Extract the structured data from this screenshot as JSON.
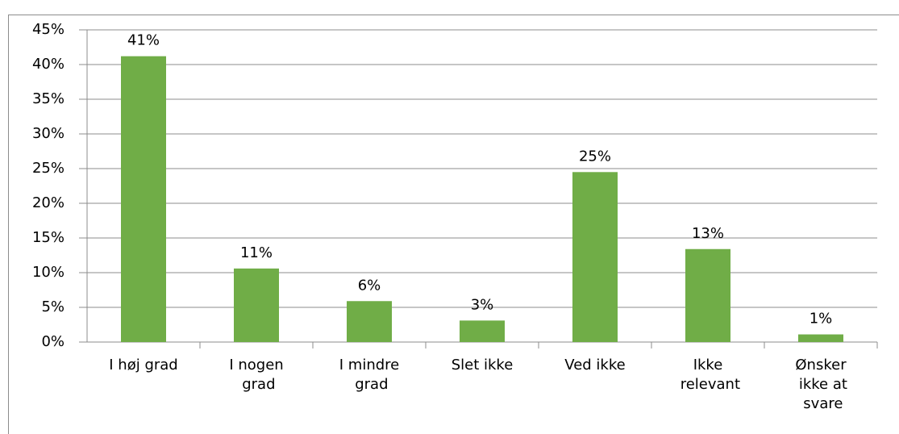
{
  "chart_data": {
    "type": "bar",
    "categories": [
      "I høj grad",
      "I nogen grad",
      "I mindre grad",
      "Slet ikke",
      "Ved ikke",
      "Ikke relevant",
      "Ønsker ikke at svare"
    ],
    "values": [
      41.2,
      10.6,
      5.9,
      3.1,
      24.5,
      13.4,
      1.1
    ],
    "value_labels": [
      "41%",
      "11%",
      "6%",
      "3%",
      "25%",
      "13%",
      "1%"
    ],
    "color": "#70ad47",
    "ylim": [
      0,
      45
    ],
    "yticks": [
      {
        "value": 0,
        "label": "0%"
      },
      {
        "value": 5,
        "label": "5%"
      },
      {
        "value": 10,
        "label": "10%"
      },
      {
        "value": 15,
        "label": "15%"
      },
      {
        "value": 20,
        "label": "20%"
      },
      {
        "value": 25,
        "label": "25%"
      },
      {
        "value": 30,
        "label": "30%"
      },
      {
        "value": 35,
        "label": "35%"
      },
      {
        "value": 40,
        "label": "40%"
      },
      {
        "value": 45,
        "label": "45%"
      }
    ],
    "grid": true
  }
}
